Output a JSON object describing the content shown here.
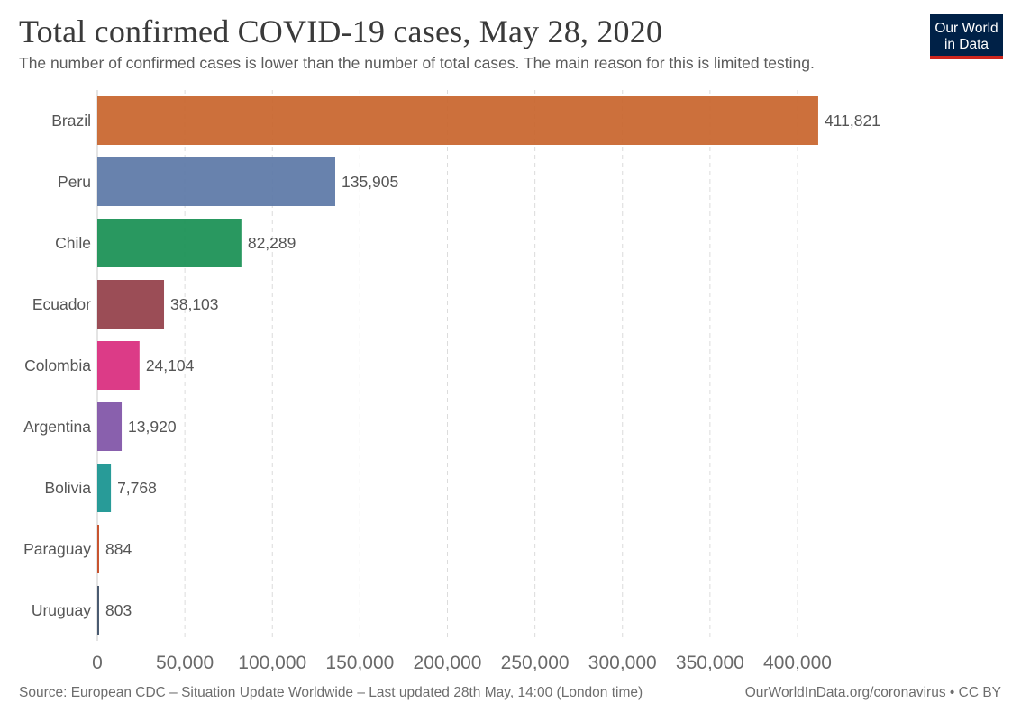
{
  "header": {
    "title": "Total confirmed COVID-19 cases, May 28, 2020",
    "subtitle": "The number of confirmed cases is lower than the number of total cases. The main reason for this is limited testing."
  },
  "logo": {
    "line1": "Our World",
    "line2": "in Data"
  },
  "footer": {
    "source": "Source: European CDC – Situation Update Worldwide – Last updated 28th May, 14:00 (London time)",
    "credit": "OurWorldInData.org/coronavirus • CC BY"
  },
  "chart_data": {
    "type": "bar",
    "orientation": "horizontal",
    "title": "Total confirmed COVID-19 cases, May 28, 2020",
    "categories": [
      "Brazil",
      "Peru",
      "Chile",
      "Ecuador",
      "Colombia",
      "Argentina",
      "Bolivia",
      "Paraguay",
      "Uruguay"
    ],
    "values": [
      411821,
      135905,
      82289,
      38103,
      24104,
      13920,
      7768,
      884,
      803
    ],
    "value_labels": [
      "411,821",
      "135,905",
      "82,289",
      "38,103",
      "24,104",
      "13,920",
      "7,768",
      "884",
      "803"
    ],
    "colors": [
      "#c8642b",
      "#5b77a6",
      "#178f52",
      "#923e48",
      "#d92a7d",
      "#7f52a6",
      "#16938f",
      "#c4461e",
      "#3c4e66"
    ],
    "xlim": [
      0,
      400000
    ],
    "xticks": [
      0,
      50000,
      100000,
      150000,
      200000,
      250000,
      300000,
      350000,
      400000
    ],
    "xtick_labels": [
      "0",
      "50,000",
      "100,000",
      "150,000",
      "200,000",
      "250,000",
      "300,000",
      "350,000",
      "400,000"
    ],
    "grid": "vertical-dashed"
  }
}
